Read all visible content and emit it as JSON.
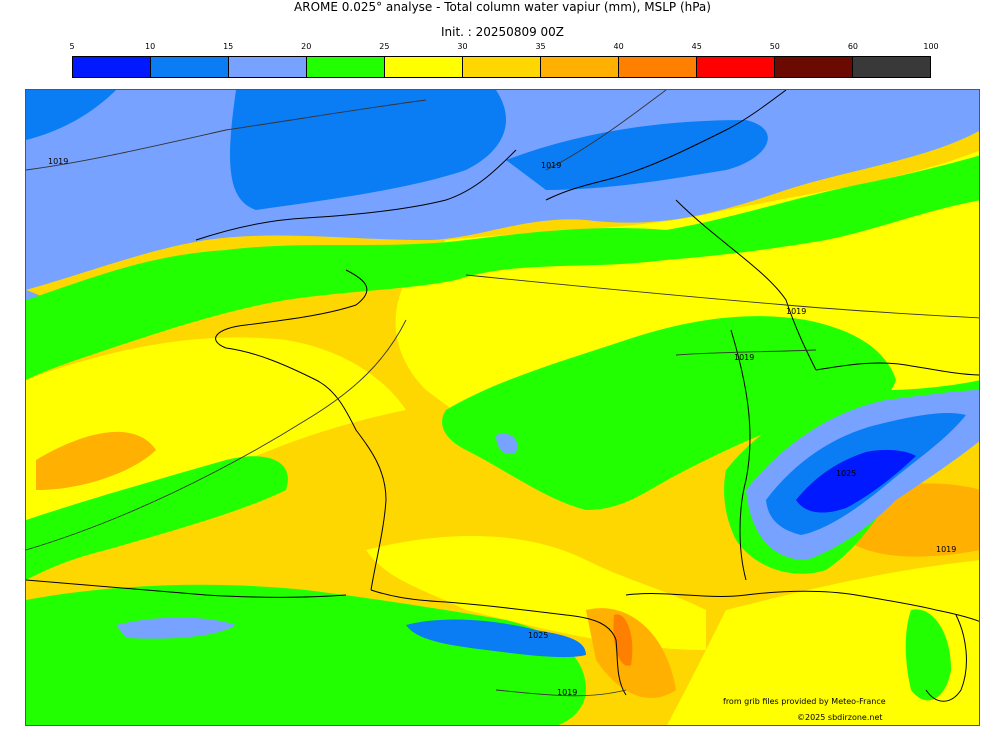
{
  "header": {
    "title": "AROME 0.025° analyse - Total column water vapiur (mm), MSLP (hPa)",
    "init": "Init. : 20250809 00Z"
  },
  "colorbar": {
    "ticks": [
      "5",
      "10",
      "15",
      "20",
      "25",
      "30",
      "35",
      "40",
      "45",
      "50",
      "60",
      "100"
    ],
    "colors": [
      "#0019ff",
      "#0a7df5",
      "#78a2ff",
      "#22ff00",
      "#ffff00",
      "#ffd700",
      "#ffb000",
      "#ff8000",
      "#ff0000",
      "#6b0a00",
      "#393939"
    ]
  },
  "map": {
    "isobar_labels": [
      "1019",
      "1019",
      "1019",
      "1019",
      "1025",
      "1019",
      "1025",
      "1019"
    ]
  },
  "footer": {
    "credit_data": "from grib files provided by Meteo-France",
    "credit_copyright": "©2025 sbdirzone.net"
  }
}
